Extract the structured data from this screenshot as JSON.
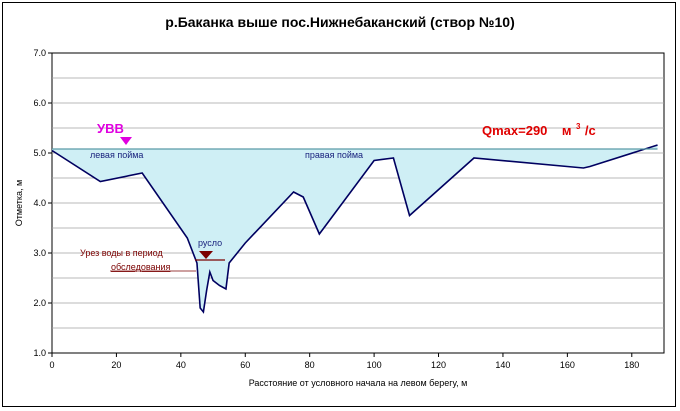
{
  "chart_data": {
    "type": "area",
    "title": "р.Баканка выше пос.Нижнебаканский (створ №10)",
    "xlabel": "Расстояние от условного начала на левом берегу, м",
    "ylabel": "Отметка, м",
    "xlim": [
      0,
      190
    ],
    "ylim": [
      1.0,
      7.0
    ],
    "x_ticks": [
      0,
      20,
      40,
      60,
      80,
      100,
      120,
      140,
      160,
      180
    ],
    "y_ticks": [
      1.0,
      1.5,
      2.0,
      2.5,
      3.0,
      3.5,
      4.0,
      4.5,
      5.0,
      5.5,
      6.0,
      6.5,
      7.0
    ],
    "y_tick_labels": [
      "1.0",
      "2.0",
      "3.0",
      "4.0",
      "5.0",
      "6.0",
      "7.0"
    ],
    "grid": "horizontal",
    "colors": {
      "profile": "#000060",
      "fill": "#cfeff5",
      "uvv": "#e000e0",
      "water_marker": "#7a0000",
      "qmax": "#e00000"
    },
    "series": [
      {
        "x": [
          0,
          15,
          28,
          42,
          45,
          46,
          47,
          48,
          49,
          50,
          52,
          54,
          55,
          60,
          75,
          78,
          83,
          100,
          106,
          111,
          131,
          165,
          167,
          188
        ],
        "y": [
          5.05,
          4.43,
          4.6,
          3.3,
          2.8,
          1.9,
          1.82,
          2.25,
          2.62,
          2.45,
          2.35,
          2.28,
          2.8,
          3.2,
          4.22,
          4.12,
          3.38,
          4.85,
          4.9,
          3.75,
          4.9,
          4.7,
          4.73,
          5.16
        ]
      }
    ],
    "water_level_uvv": 5.08,
    "water_level_survey": 2.85,
    "annotations": {
      "uvv": "УВВ",
      "left_floodplain": "левая пойма",
      "right_floodplain": "правая пойма",
      "channel": "русло",
      "survey_line1": "Урез воды в период",
      "survey_line2": "обследования",
      "qmax_main": "Qmax=290",
      "qmax_unit": "м",
      "qmax_sup": "3",
      "qmax_tail": "/с"
    }
  }
}
